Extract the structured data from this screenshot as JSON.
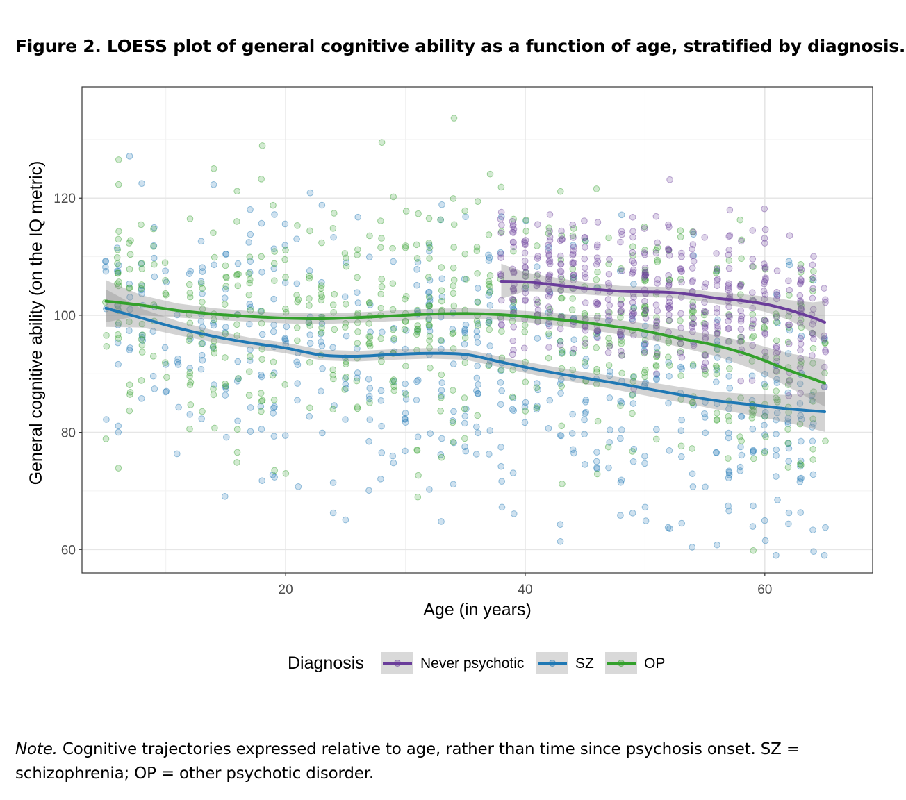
{
  "figure": {
    "title": "Figure 2. LOESS plot of general cognitive ability as a function of age, stratified by diagnosis.",
    "note_lead": "Note.",
    "note_text": " Cognitive trajectories expressed relative to age, rather than time since psychosis onset. SZ = schizophrenia; OP = other psychotic disorder."
  },
  "chart_data": {
    "type": "scatter",
    "xlabel": "Age (in years)",
    "ylabel": "General cognitive ability (on the IQ metric)",
    "xlim": [
      3,
      69
    ],
    "ylim": [
      56,
      139
    ],
    "xticks": [
      20,
      40,
      60
    ],
    "yticks": [
      60,
      80,
      100,
      120
    ],
    "grid": true,
    "legend": {
      "title": "Diagnosis",
      "position": "bottom",
      "entries": [
        "Never psychotic",
        "SZ",
        "OP"
      ]
    },
    "series": [
      {
        "name": "Never psychotic",
        "color": "#6a3d9a",
        "loess": {
          "x": [
            38,
            40,
            42,
            44,
            46,
            48,
            50,
            52,
            54,
            56,
            58,
            60,
            62,
            64,
            65
          ],
          "y": [
            105.8,
            105.7,
            105.3,
            104.8,
            104.4,
            104.1,
            104.0,
            103.9,
            103.5,
            102.9,
            102.5,
            101.9,
            100.9,
            99.6,
            98.8
          ]
        },
        "band_halfwidth": [
          3.0,
          1.6,
          1.3,
          1.1,
          1.0,
          0.9,
          0.9,
          0.9,
          0.9,
          1.0,
          1.1,
          1.3,
          1.7,
          2.6,
          3.6
        ]
      },
      {
        "name": "SZ",
        "color": "#1f78b4",
        "loess": {
          "x": [
            5,
            8,
            11,
            14,
            17,
            20,
            23,
            26,
            29,
            32,
            35,
            38,
            41,
            44,
            47,
            50,
            53,
            56,
            59,
            62,
            65
          ],
          "y": [
            101.2,
            99.5,
            97.8,
            96.4,
            95.3,
            94.4,
            93.2,
            93.0,
            93.3,
            93.5,
            93.3,
            92.0,
            90.7,
            89.6,
            88.6,
            87.5,
            86.4,
            85.4,
            84.7,
            84.0,
            83.5
          ]
        },
        "band_halfwidth": [
          3.2,
          1.6,
          1.2,
          1.0,
          0.9,
          0.9,
          0.9,
          0.9,
          0.9,
          0.9,
          0.9,
          0.9,
          1.0,
          1.0,
          1.1,
          1.2,
          1.3,
          1.5,
          1.8,
          2.4,
          3.4
        ]
      },
      {
        "name": "OP",
        "color": "#33a02c",
        "loess": {
          "x": [
            5,
            8,
            11,
            14,
            17,
            20,
            23,
            26,
            29,
            32,
            35,
            38,
            41,
            44,
            47,
            50,
            53,
            56,
            59,
            62,
            65
          ],
          "y": [
            102.4,
            101.7,
            100.8,
            100.2,
            99.8,
            99.5,
            99.4,
            99.6,
            99.9,
            100.2,
            100.3,
            100.1,
            99.6,
            99.0,
            98.2,
            97.3,
            96.0,
            94.8,
            93.0,
            90.6,
            88.4
          ]
        },
        "band_halfwidth": [
          3.6,
          1.7,
          1.2,
          1.0,
          0.9,
          0.9,
          0.9,
          0.9,
          0.9,
          0.9,
          0.9,
          0.9,
          1.0,
          1.1,
          1.2,
          1.3,
          1.5,
          1.8,
          2.2,
          2.9,
          4.0
        ]
      }
    ]
  }
}
